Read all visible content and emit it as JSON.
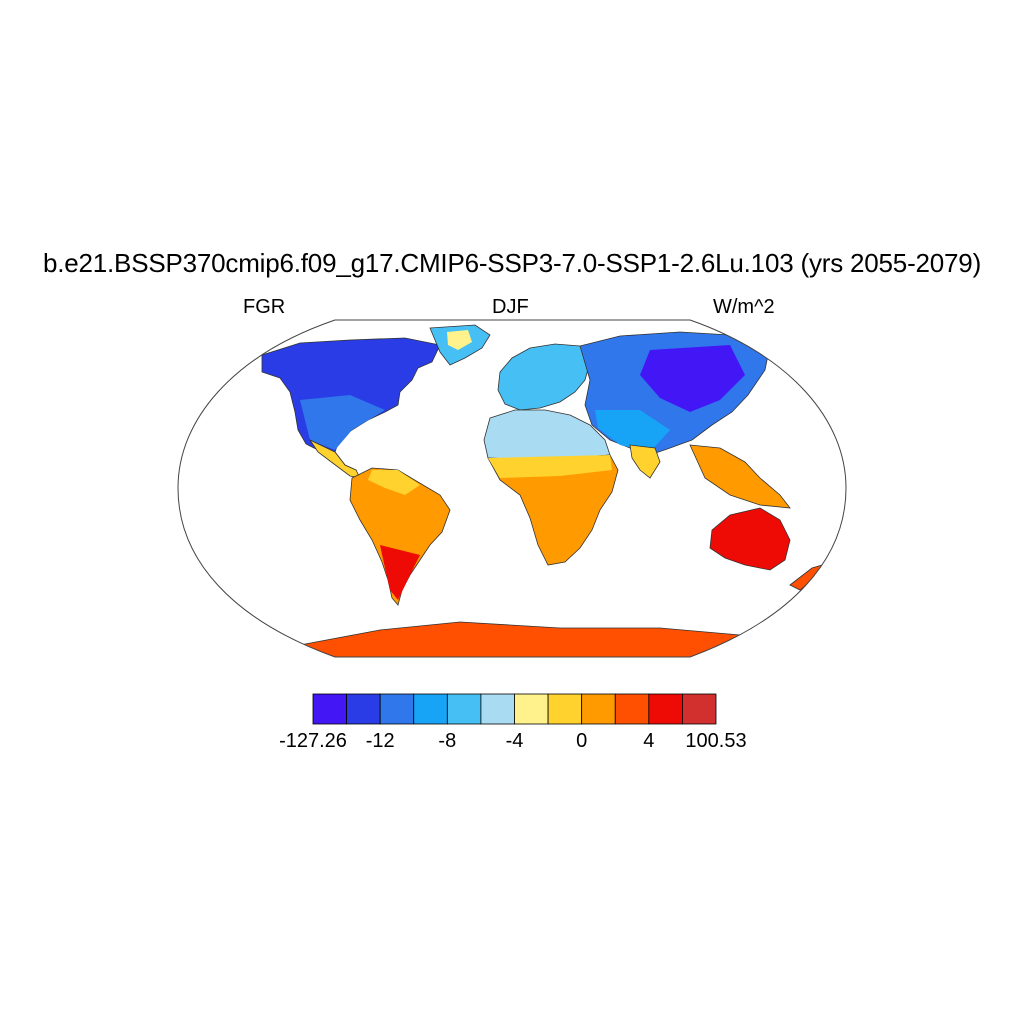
{
  "title": "b.e21.BSSP370cmip6.f09_g17.CMIP6-SSP3-7.0-SSP1-2.6Lu.103 (yrs 2055-2079)",
  "variable": "FGR",
  "season": "DJF",
  "units": "W/m^2",
  "projection": "robinson",
  "colorbar": {
    "colors": [
      "#4316f5",
      "#2a3ce6",
      "#3077ec",
      "#17a4f7",
      "#46c0f4",
      "#a9dbf2",
      "#fff28c",
      "#ffd22d",
      "#ff9a00",
      "#ff4f00",
      "#ee0a05",
      "#d22f2f"
    ],
    "labels": [
      "-127.26",
      "-12",
      "-8",
      "-4",
      "0",
      "4",
      "100.53"
    ]
  },
  "colors": {
    "land_edge": "#333333",
    "frame": "#444444"
  }
}
